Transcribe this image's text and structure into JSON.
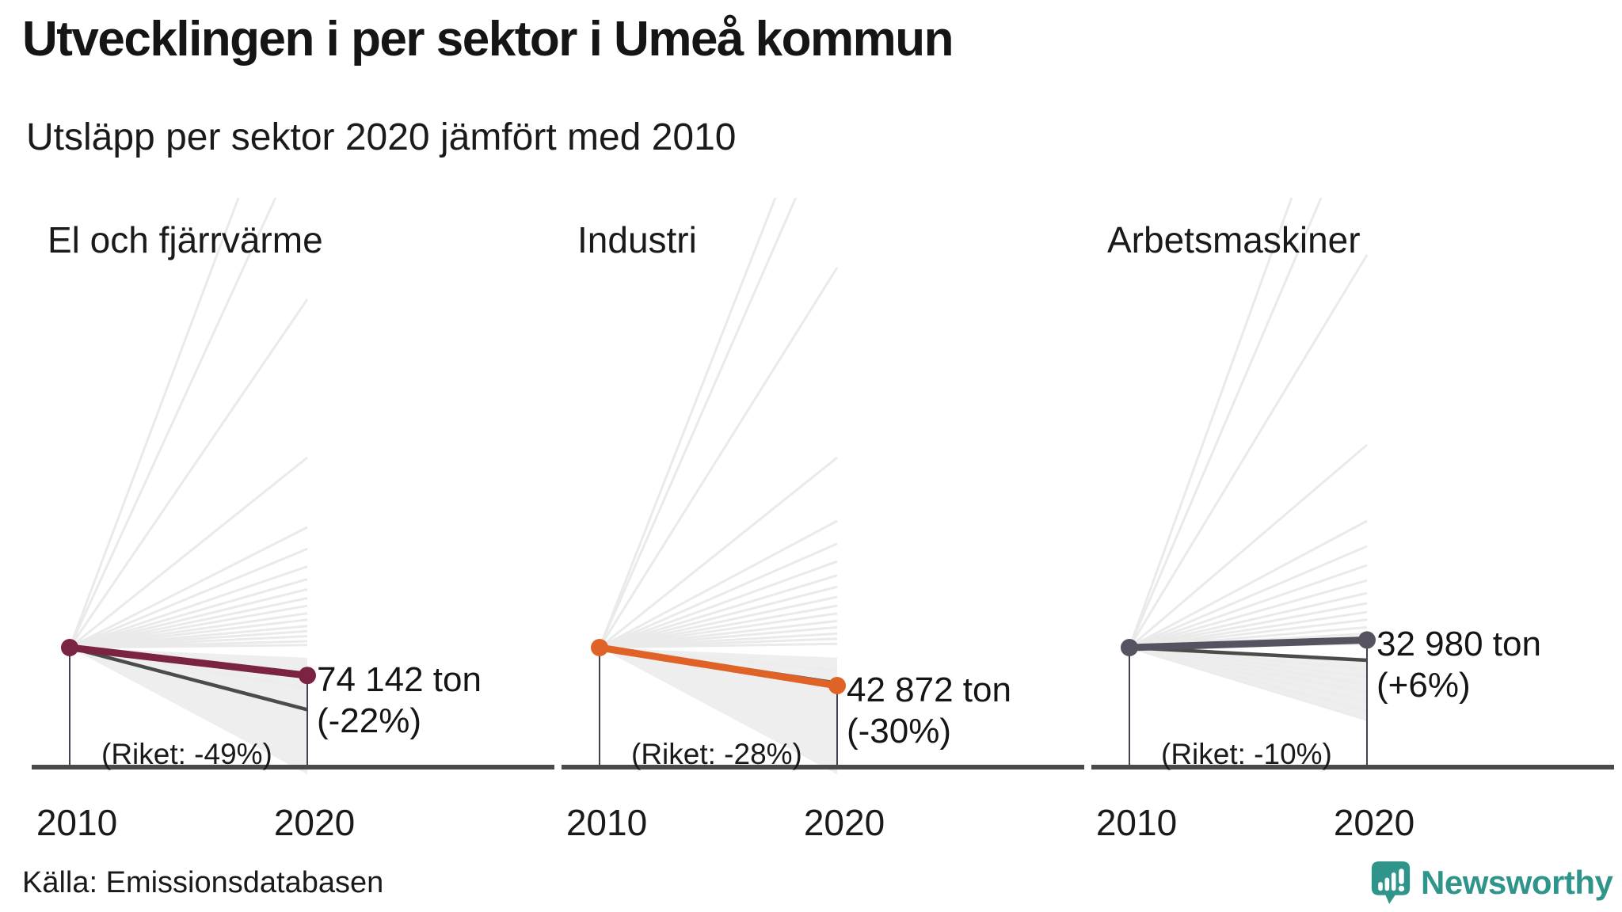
{
  "header": {
    "title": "Utvecklingen i per sektor i Umeå kommun",
    "subtitle": "Utsläpp per sektor 2020 jämfört med 2010"
  },
  "footer": {
    "source": "Källa: Emissionsdatabasen",
    "logo_text": "Newsworthy"
  },
  "colors": {
    "text": "#1a1a1a",
    "axis": "#4a4a4a",
    "guide_line": "#45414e",
    "riket_line": "#4b4b4b",
    "background_lines": "#e9e9e9",
    "wedge": "#ececec",
    "logo_teal": "#2f958b"
  },
  "chart_data": {
    "type": "slope",
    "x_categories": [
      "2010",
      "2020"
    ],
    "unit": "ton",
    "region": "Umeå kommun",
    "comparison_label": "Riket",
    "charts": [
      {
        "title": "El och fjärrvärme",
        "value_2020_ton": 74142,
        "value_label": "74 142 ton",
        "change_pct": -22,
        "change_label": "(-22%)",
        "riket_change_pct": -49,
        "riket_label": "(Riket: -49%)",
        "color": "#7a2342",
        "fan_up_pct_approx": [
          500,
          410,
          275,
          150,
          95,
          78,
          64,
          54,
          46,
          39,
          33,
          27,
          22,
          17,
          13,
          9,
          5,
          2
        ],
        "fan_down_pct_approx": [
          -20,
          -32
        ],
        "wedge_pct_approx": [
          -8,
          -100
        ]
      },
      {
        "title": "Industri",
        "value_2020_ton": 42872,
        "value_label": "42 872 ton",
        "change_pct": -30,
        "change_label": "(-30%)",
        "riket_change_pct": -28,
        "riket_label": "(Riket: -28%)",
        "color": "#df6327",
        "fan_up_pct_approx": [
          480,
          430,
          300,
          150,
          100,
          82,
          68,
          57,
          48,
          40,
          33,
          27,
          21,
          16,
          11,
          7,
          3
        ],
        "fan_down_pct_approx": [
          -18
        ],
        "wedge_pct_approx": [
          -8,
          -100
        ]
      },
      {
        "title": "Arbetsmaskiner",
        "value_2020_ton": 32980,
        "value_label": "32 980 ton",
        "change_pct": 6,
        "change_label": "(+6%)",
        "riket_change_pct": -10,
        "riket_label": "(Riket: -10%)",
        "color": "#57525f",
        "fan_up_pct_approx": [
          520,
          440,
          310,
          160,
          100,
          80,
          65,
          53,
          43,
          35,
          28,
          22,
          16,
          11,
          7,
          3
        ],
        "fan_down_pct_approx": [
          -11,
          -17,
          -23,
          -29,
          -35,
          -42,
          -50,
          -57
        ],
        "wedge_pct_approx": [
          -8,
          -58
        ]
      }
    ]
  }
}
